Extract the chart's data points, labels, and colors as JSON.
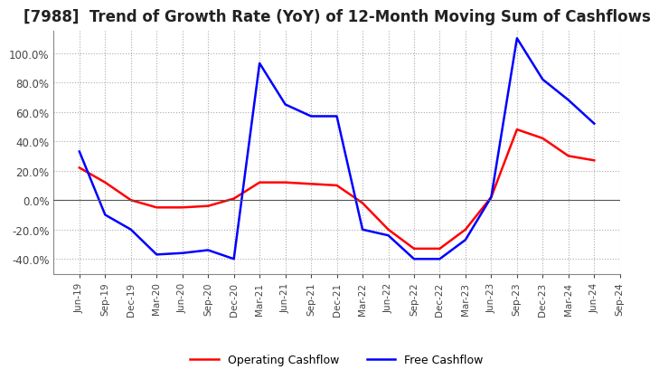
{
  "title": "[7988]  Trend of Growth Rate (YoY) of 12-Month Moving Sum of Cashflows",
  "title_fontsize": 12,
  "ylim": [
    -0.5,
    1.15
  ],
  "yticks": [
    -0.4,
    -0.2,
    0.0,
    0.2,
    0.4,
    0.6,
    0.8,
    1.0
  ],
  "background_color": "#ffffff",
  "grid_color": "#aaaaaa",
  "dates": [
    "Jun-19",
    "Sep-19",
    "Dec-19",
    "Mar-20",
    "Jun-20",
    "Sep-20",
    "Dec-20",
    "Mar-21",
    "Jun-21",
    "Sep-21",
    "Dec-21",
    "Mar-22",
    "Jun-22",
    "Sep-22",
    "Dec-22",
    "Mar-23",
    "Jun-23",
    "Sep-23",
    "Dec-23",
    "Mar-24",
    "Jun-24",
    "Sep-24"
  ],
  "operating_cashflow": [
    0.22,
    0.12,
    0.0,
    -0.05,
    -0.05,
    -0.04,
    0.01,
    0.12,
    0.12,
    0.11,
    0.1,
    -0.02,
    -0.2,
    -0.33,
    -0.33,
    -0.2,
    0.02,
    0.48,
    0.42,
    0.3,
    0.27,
    null
  ],
  "free_cashflow": [
    0.33,
    -0.1,
    -0.2,
    -0.37,
    -0.36,
    -0.34,
    -0.4,
    0.93,
    0.65,
    0.57,
    0.57,
    -0.2,
    -0.24,
    -0.4,
    -0.4,
    -0.27,
    0.02,
    1.1,
    0.82,
    0.68,
    0.52,
    null
  ],
  "operating_color": "#ff0000",
  "free_color": "#0000ff",
  "line_width": 1.8
}
